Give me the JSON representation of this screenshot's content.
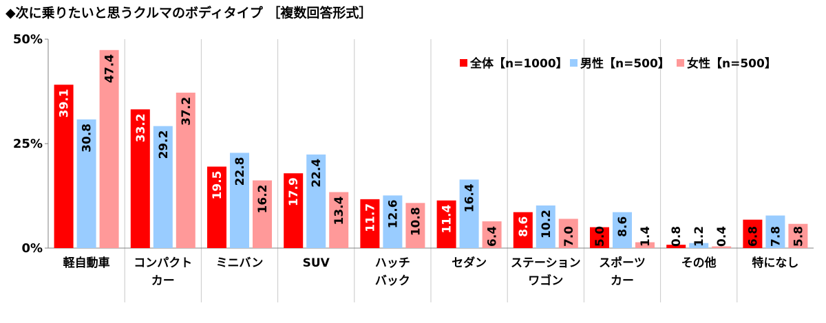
{
  "chart_data": {
    "type": "bar",
    "title": "◆次に乗りたいと思うクルマのボディタイプ ［複数回答形式］",
    "categories": [
      [
        "軽自動車"
      ],
      [
        "コンパクト",
        "カー"
      ],
      [
        "ミニバン"
      ],
      [
        "SUV"
      ],
      [
        "ハッチ",
        "バック"
      ],
      [
        "セダン"
      ],
      [
        "ステーション",
        "ワゴン"
      ],
      [
        "スポーツ",
        "カー"
      ],
      [
        "その他"
      ],
      [
        "特になし"
      ]
    ],
    "series": [
      {
        "name": "全体【n=1000】",
        "color": "#ff0000",
        "label_color": "#ffffff",
        "values": [
          39.1,
          33.2,
          19.5,
          17.9,
          11.7,
          11.4,
          8.6,
          5.0,
          0.8,
          6.8
        ]
      },
      {
        "name": "男性【n=500】",
        "color": "#99ccff",
        "label_color": "#000000",
        "values": [
          30.8,
          29.2,
          22.8,
          22.4,
          12.6,
          16.4,
          10.2,
          8.6,
          1.2,
          7.8
        ]
      },
      {
        "name": "女性【n=500】",
        "color": "#ff9999",
        "label_color": "#000000",
        "values": [
          47.4,
          37.2,
          16.2,
          13.4,
          10.8,
          6.4,
          7.0,
          1.4,
          0.4,
          5.8
        ]
      }
    ],
    "yticks": [
      "0%",
      "25%",
      "50%"
    ],
    "ylim": [
      0,
      50
    ],
    "legend_position": "top-right",
    "grid": "vertical category separators"
  }
}
